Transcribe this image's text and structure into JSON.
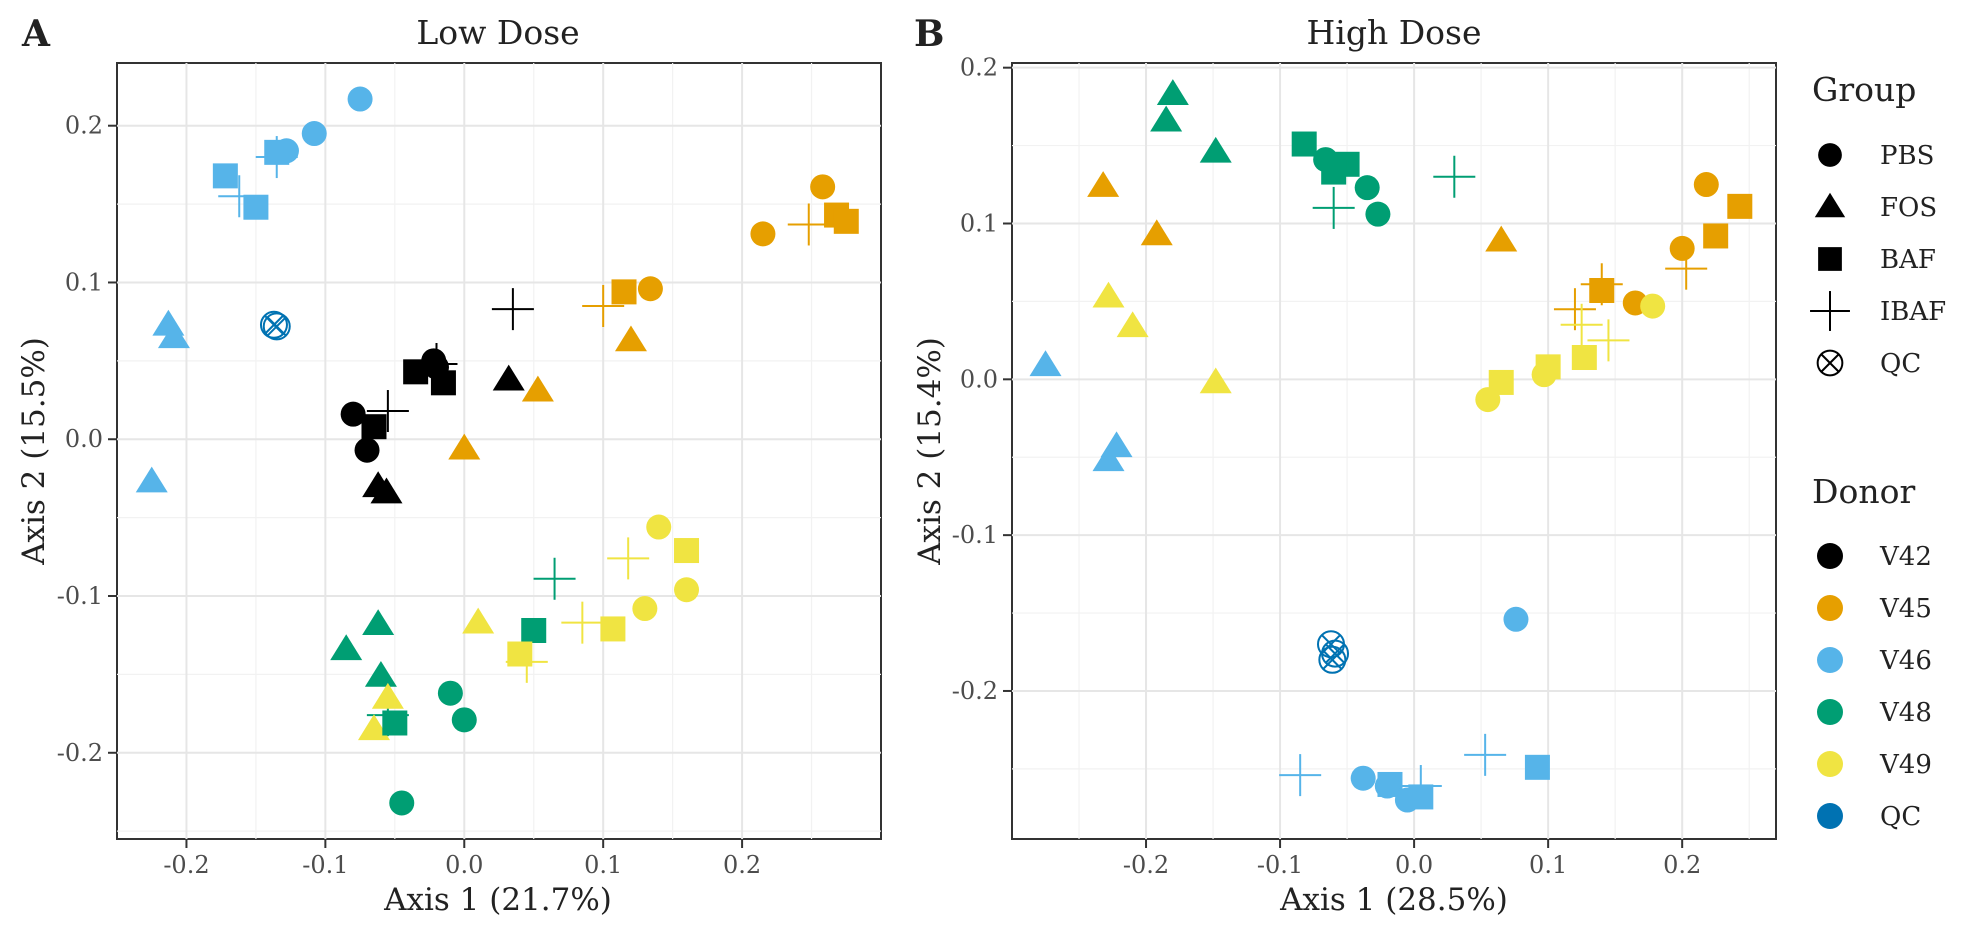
{
  "figure": {
    "legend_group_title": "Group",
    "legend_group": [
      {
        "label": "PBS",
        "shape": "circle-icon"
      },
      {
        "label": "FOS",
        "shape": "triangle-icon"
      },
      {
        "label": "BAF",
        "shape": "square-icon"
      },
      {
        "label": "IBAF",
        "shape": "plus-icon"
      },
      {
        "label": "QC",
        "shape": "circle-x-icon"
      }
    ],
    "legend_donor_title": "Donor",
    "legend_donor": [
      {
        "label": "V42",
        "color": "#000000"
      },
      {
        "label": "V45",
        "color": "#E69F00"
      },
      {
        "label": "V46",
        "color": "#56B4E9"
      },
      {
        "label": "V48",
        "color": "#009E73"
      },
      {
        "label": "V49",
        "color": "#F0E442"
      },
      {
        "label": "QC",
        "color": "#0072B2"
      }
    ]
  },
  "chart_data": [
    {
      "type": "scatter",
      "panel": "A",
      "title": "Low Dose",
      "xlabel": "Axis 1 (21.7%)",
      "ylabel": "Axis 2 (15.5%)",
      "xlim": [
        -0.25,
        0.3
      ],
      "ylim": [
        -0.255,
        0.24
      ],
      "xticks": [
        -0.2,
        -0.1,
        0.0,
        0.1,
        0.2
      ],
      "yticks": [
        -0.2,
        -0.1,
        0.0,
        0.1,
        0.2
      ],
      "xtick_labels": [
        "-0.2",
        "-0.1",
        "0.0",
        "0.1",
        "0.2"
      ],
      "ytick_labels": [
        "-0.2",
        "-0.1",
        "0.0",
        "0.1",
        "0.2"
      ],
      "grid": true,
      "points": [
        {
          "x": -0.075,
          "y": 0.217,
          "group": "PBS",
          "donor": "V46"
        },
        {
          "x": -0.108,
          "y": 0.195,
          "group": "PBS",
          "donor": "V46"
        },
        {
          "x": -0.128,
          "y": 0.184,
          "group": "PBS",
          "donor": "V46"
        },
        {
          "x": -0.135,
          "y": 0.183,
          "group": "BAF",
          "donor": "V46"
        },
        {
          "x": -0.172,
          "y": 0.168,
          "group": "BAF",
          "donor": "V46"
        },
        {
          "x": -0.15,
          "y": 0.148,
          "group": "BAF",
          "donor": "V46"
        },
        {
          "x": -0.162,
          "y": 0.155,
          "group": "IBAF",
          "donor": "V46"
        },
        {
          "x": -0.135,
          "y": 0.18,
          "group": "IBAF",
          "donor": "V46"
        },
        {
          "x": -0.213,
          "y": 0.073,
          "group": "FOS",
          "donor": "V46"
        },
        {
          "x": -0.209,
          "y": 0.065,
          "group": "FOS",
          "donor": "V46"
        },
        {
          "x": -0.225,
          "y": -0.027,
          "group": "FOS",
          "donor": "V46"
        },
        {
          "x": -0.137,
          "y": 0.073,
          "group": "QC",
          "donor": "QC"
        },
        {
          "x": -0.135,
          "y": 0.072,
          "group": "QC",
          "donor": "QC"
        },
        {
          "x": -0.08,
          "y": 0.016,
          "group": "PBS",
          "donor": "V42"
        },
        {
          "x": -0.07,
          "y": -0.007,
          "group": "PBS",
          "donor": "V42"
        },
        {
          "x": -0.065,
          "y": 0.008,
          "group": "BAF",
          "donor": "V42"
        },
        {
          "x": -0.055,
          "y": 0.018,
          "group": "IBAF",
          "donor": "V42"
        },
        {
          "x": -0.062,
          "y": -0.03,
          "group": "FOS",
          "donor": "V42"
        },
        {
          "x": -0.056,
          "y": -0.034,
          "group": "FOS",
          "donor": "V42"
        },
        {
          "x": -0.022,
          "y": 0.05,
          "group": "PBS",
          "donor": "V42"
        },
        {
          "x": -0.02,
          "y": 0.046,
          "group": "PBS",
          "donor": "V42"
        },
        {
          "x": -0.035,
          "y": 0.043,
          "group": "BAF",
          "donor": "V42"
        },
        {
          "x": -0.015,
          "y": 0.036,
          "group": "BAF",
          "donor": "V42"
        },
        {
          "x": -0.02,
          "y": 0.048,
          "group": "IBAF",
          "donor": "V42"
        },
        {
          "x": 0.035,
          "y": 0.083,
          "group": "IBAF",
          "donor": "V42"
        },
        {
          "x": 0.032,
          "y": 0.038,
          "group": "FOS",
          "donor": "V42"
        },
        {
          "x": 0.258,
          "y": 0.161,
          "group": "PBS",
          "donor": "V45"
        },
        {
          "x": 0.215,
          "y": 0.131,
          "group": "PBS",
          "donor": "V45"
        },
        {
          "x": 0.134,
          "y": 0.096,
          "group": "PBS",
          "donor": "V45"
        },
        {
          "x": 0.268,
          "y": 0.143,
          "group": "BAF",
          "donor": "V45"
        },
        {
          "x": 0.275,
          "y": 0.139,
          "group": "BAF",
          "donor": "V45"
        },
        {
          "x": 0.115,
          "y": 0.094,
          "group": "BAF",
          "donor": "V45"
        },
        {
          "x": 0.248,
          "y": 0.137,
          "group": "IBAF",
          "donor": "V45"
        },
        {
          "x": 0.1,
          "y": 0.085,
          "group": "IBAF",
          "donor": "V45"
        },
        {
          "x": 0.12,
          "y": 0.063,
          "group": "FOS",
          "donor": "V45"
        },
        {
          "x": 0.053,
          "y": 0.031,
          "group": "FOS",
          "donor": "V45"
        },
        {
          "x": 0.0,
          "y": -0.006,
          "group": "FOS",
          "donor": "V45"
        },
        {
          "x": -0.01,
          "y": -0.162,
          "group": "PBS",
          "donor": "V48"
        },
        {
          "x": 0.0,
          "y": -0.179,
          "group": "PBS",
          "donor": "V48"
        },
        {
          "x": -0.045,
          "y": -0.232,
          "group": "PBS",
          "donor": "V48"
        },
        {
          "x": 0.05,
          "y": -0.122,
          "group": "BAF",
          "donor": "V48"
        },
        {
          "x": -0.05,
          "y": -0.181,
          "group": "BAF",
          "donor": "V48"
        },
        {
          "x": 0.065,
          "y": -0.089,
          "group": "IBAF",
          "donor": "V48"
        },
        {
          "x": -0.055,
          "y": -0.176,
          "group": "IBAF",
          "donor": "V48"
        },
        {
          "x": -0.085,
          "y": -0.134,
          "group": "FOS",
          "donor": "V48"
        },
        {
          "x": -0.062,
          "y": -0.118,
          "group": "FOS",
          "donor": "V48"
        },
        {
          "x": -0.06,
          "y": -0.151,
          "group": "FOS",
          "donor": "V48"
        },
        {
          "x": 0.14,
          "y": -0.056,
          "group": "PBS",
          "donor": "V49"
        },
        {
          "x": 0.16,
          "y": -0.096,
          "group": "PBS",
          "donor": "V49"
        },
        {
          "x": 0.13,
          "y": -0.108,
          "group": "PBS",
          "donor": "V49"
        },
        {
          "x": 0.16,
          "y": -0.071,
          "group": "BAF",
          "donor": "V49"
        },
        {
          "x": 0.107,
          "y": -0.121,
          "group": "BAF",
          "donor": "V49"
        },
        {
          "x": 0.04,
          "y": -0.137,
          "group": "BAF",
          "donor": "V49"
        },
        {
          "x": 0.118,
          "y": -0.076,
          "group": "IBAF",
          "donor": "V49"
        },
        {
          "x": 0.085,
          "y": -0.117,
          "group": "IBAF",
          "donor": "V49"
        },
        {
          "x": 0.045,
          "y": -0.142,
          "group": "IBAF",
          "donor": "V49"
        },
        {
          "x": 0.01,
          "y": -0.117,
          "group": "FOS",
          "donor": "V49"
        },
        {
          "x": -0.055,
          "y": -0.165,
          "group": "FOS",
          "donor": "V49"
        },
        {
          "x": -0.065,
          "y": -0.185,
          "group": "FOS",
          "donor": "V49"
        }
      ]
    },
    {
      "type": "scatter",
      "panel": "B",
      "title": "High Dose",
      "xlabel": "Axis 1 (28.5%)",
      "ylabel": "Axis 2 (15.4%)",
      "xlim": [
        -0.3,
        0.27
      ],
      "ylim": [
        -0.295,
        0.203
      ],
      "xticks": [
        -0.2,
        -0.1,
        0.0,
        0.1,
        0.2
      ],
      "yticks": [
        -0.2,
        -0.1,
        0.0,
        0.1,
        0.2
      ],
      "xtick_labels": [
        "-0.2",
        "-0.1",
        "0.0",
        "0.1",
        "0.2"
      ],
      "ytick_labels": [
        "-0.2",
        "-0.1",
        "0.0",
        "0.1",
        "0.2"
      ],
      "grid": true,
      "points": [
        {
          "x": -0.18,
          "y": 0.183,
          "group": "FOS",
          "donor": "V48"
        },
        {
          "x": -0.185,
          "y": 0.166,
          "group": "FOS",
          "donor": "V48"
        },
        {
          "x": -0.148,
          "y": 0.146,
          "group": "FOS",
          "donor": "V48"
        },
        {
          "x": -0.082,
          "y": 0.151,
          "group": "BAF",
          "donor": "V48"
        },
        {
          "x": -0.05,
          "y": 0.138,
          "group": "BAF",
          "donor": "V48"
        },
        {
          "x": -0.06,
          "y": 0.133,
          "group": "BAF",
          "donor": "V48"
        },
        {
          "x": -0.066,
          "y": 0.141,
          "group": "PBS",
          "donor": "V48"
        },
        {
          "x": -0.035,
          "y": 0.123,
          "group": "PBS",
          "donor": "V48"
        },
        {
          "x": -0.027,
          "y": 0.106,
          "group": "PBS",
          "donor": "V48"
        },
        {
          "x": -0.06,
          "y": 0.11,
          "group": "IBAF",
          "donor": "V48"
        },
        {
          "x": 0.03,
          "y": 0.13,
          "group": "IBAF",
          "donor": "V48"
        },
        {
          "x": -0.232,
          "y": 0.124,
          "group": "FOS",
          "donor": "V45"
        },
        {
          "x": -0.192,
          "y": 0.093,
          "group": "FOS",
          "donor": "V45"
        },
        {
          "x": 0.065,
          "y": 0.089,
          "group": "FOS",
          "donor": "V45"
        },
        {
          "x": 0.218,
          "y": 0.125,
          "group": "PBS",
          "donor": "V45"
        },
        {
          "x": 0.2,
          "y": 0.084,
          "group": "PBS",
          "donor": "V45"
        },
        {
          "x": 0.165,
          "y": 0.049,
          "group": "PBS",
          "donor": "V45"
        },
        {
          "x": 0.243,
          "y": 0.111,
          "group": "BAF",
          "donor": "V45"
        },
        {
          "x": 0.225,
          "y": 0.092,
          "group": "BAF",
          "donor": "V45"
        },
        {
          "x": 0.14,
          "y": 0.057,
          "group": "BAF",
          "donor": "V45"
        },
        {
          "x": 0.203,
          "y": 0.071,
          "group": "IBAF",
          "donor": "V45"
        },
        {
          "x": 0.14,
          "y": 0.061,
          "group": "IBAF",
          "donor": "V45"
        },
        {
          "x": 0.12,
          "y": 0.045,
          "group": "IBAF",
          "donor": "V45"
        },
        {
          "x": -0.228,
          "y": 0.053,
          "group": "FOS",
          "donor": "V49"
        },
        {
          "x": -0.21,
          "y": 0.034,
          "group": "FOS",
          "donor": "V49"
        },
        {
          "x": -0.148,
          "y": -0.002,
          "group": "FOS",
          "donor": "V49"
        },
        {
          "x": 0.178,
          "y": 0.047,
          "group": "PBS",
          "donor": "V49"
        },
        {
          "x": 0.097,
          "y": 0.003,
          "group": "PBS",
          "donor": "V49"
        },
        {
          "x": 0.055,
          "y": -0.013,
          "group": "PBS",
          "donor": "V49"
        },
        {
          "x": 0.1,
          "y": 0.008,
          "group": "BAF",
          "donor": "V49"
        },
        {
          "x": 0.127,
          "y": 0.014,
          "group": "BAF",
          "donor": "V49"
        },
        {
          "x": 0.065,
          "y": -0.002,
          "group": "BAF",
          "donor": "V49"
        },
        {
          "x": 0.145,
          "y": 0.025,
          "group": "IBAF",
          "donor": "V49"
        },
        {
          "x": 0.125,
          "y": 0.035,
          "group": "IBAF",
          "donor": "V49"
        },
        {
          "x": -0.275,
          "y": 0.009,
          "group": "FOS",
          "donor": "V46"
        },
        {
          "x": -0.222,
          "y": -0.043,
          "group": "FOS",
          "donor": "V46"
        },
        {
          "x": -0.228,
          "y": -0.052,
          "group": "FOS",
          "donor": "V46"
        },
        {
          "x": 0.076,
          "y": -0.154,
          "group": "PBS",
          "donor": "V46"
        },
        {
          "x": -0.038,
          "y": -0.256,
          "group": "PBS",
          "donor": "V46"
        },
        {
          "x": -0.02,
          "y": -0.261,
          "group": "PBS",
          "donor": "V46"
        },
        {
          "x": -0.005,
          "y": -0.27,
          "group": "PBS",
          "donor": "V46"
        },
        {
          "x": 0.092,
          "y": -0.249,
          "group": "BAF",
          "donor": "V46"
        },
        {
          "x": -0.018,
          "y": -0.26,
          "group": "BAF",
          "donor": "V46"
        },
        {
          "x": 0.005,
          "y": -0.268,
          "group": "BAF",
          "donor": "V46"
        },
        {
          "x": -0.085,
          "y": -0.254,
          "group": "IBAF",
          "donor": "V46"
        },
        {
          "x": 0.053,
          "y": -0.241,
          "group": "IBAF",
          "donor": "V46"
        },
        {
          "x": 0.005,
          "y": -0.261,
          "group": "IBAF",
          "donor": "V46"
        },
        {
          "x": -0.062,
          "y": -0.17,
          "group": "QC",
          "donor": "QC"
        },
        {
          "x": -0.059,
          "y": -0.176,
          "group": "QC",
          "donor": "QC"
        },
        {
          "x": -0.061,
          "y": -0.18,
          "group": "QC",
          "donor": "QC"
        }
      ]
    }
  ]
}
